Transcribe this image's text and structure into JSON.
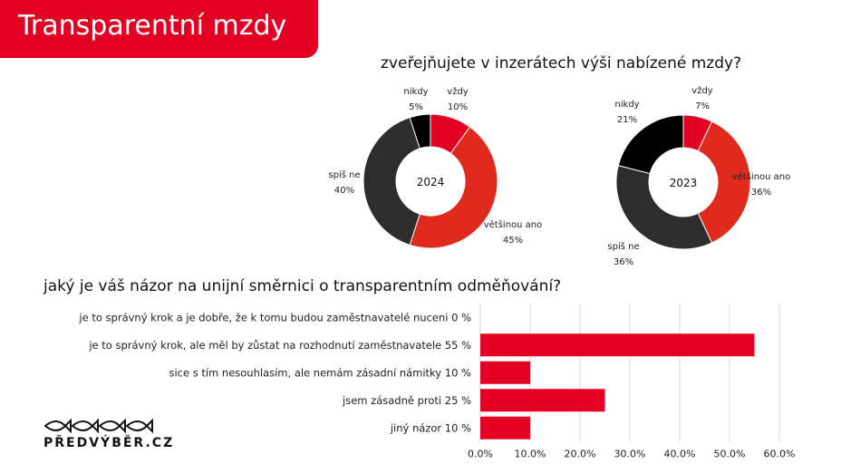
{
  "header": {
    "title": "Transparentní mzdy"
  },
  "logo": {
    "text": "PŘEDVÝBĚR.CZ"
  },
  "chart_data": [
    {
      "type": "pie",
      "title": "zveřejňujete v inzerátech výši nabízené mzdy?",
      "center_label": "2024",
      "slices": [
        {
          "label": "vždy",
          "value": 10,
          "value_label": "10%",
          "color": "#e30022"
        },
        {
          "label": "většinou ano",
          "value": 45,
          "value_label": "45%",
          "color": "#e02a1d"
        },
        {
          "label": "spíš ne",
          "value": 40,
          "value_label": "40%",
          "color": "#2d2d2d"
        },
        {
          "label": "nikdy",
          "value": 5,
          "value_label": "5%",
          "color": "#000000"
        }
      ]
    },
    {
      "type": "pie",
      "center_label": "2023",
      "slices": [
        {
          "label": "vždy",
          "value": 7,
          "value_label": "7%",
          "color": "#e30022"
        },
        {
          "label": "většinou ano",
          "value": 36,
          "value_label": "36%",
          "color": "#e02a1d"
        },
        {
          "label": "spíš ne",
          "value": 36,
          "value_label": "36%",
          "color": "#2d2d2d"
        },
        {
          "label": "nikdy",
          "value": 21,
          "value_label": "21%",
          "color": "#000000"
        }
      ]
    },
    {
      "type": "bar",
      "orientation": "horizontal",
      "title": "jaký je váš názor na unijní směrnici o transparentním odměňování?",
      "categories": [
        "je to správný krok a je dobře, že k tomu budou zaměstnavatelé nuceni 0 %",
        "je to správný krok, ale měl by zůstat na rozhodnutí zaměstnavatele 55 %",
        "sice s tím nesouhlasím, ale nemám zásadní námitky 10 %",
        "jsem zásadně proti 25 %",
        "jiný názor 10 %"
      ],
      "values": [
        0,
        55,
        10,
        25,
        10
      ],
      "xlim": [
        0,
        60
      ],
      "ticks": [
        "0.0%",
        "10.0%",
        "20.0%",
        "30.0%",
        "40.0%",
        "50.0%",
        "60.0%"
      ],
      "grid": true,
      "bar_color": "#e30022"
    }
  ]
}
